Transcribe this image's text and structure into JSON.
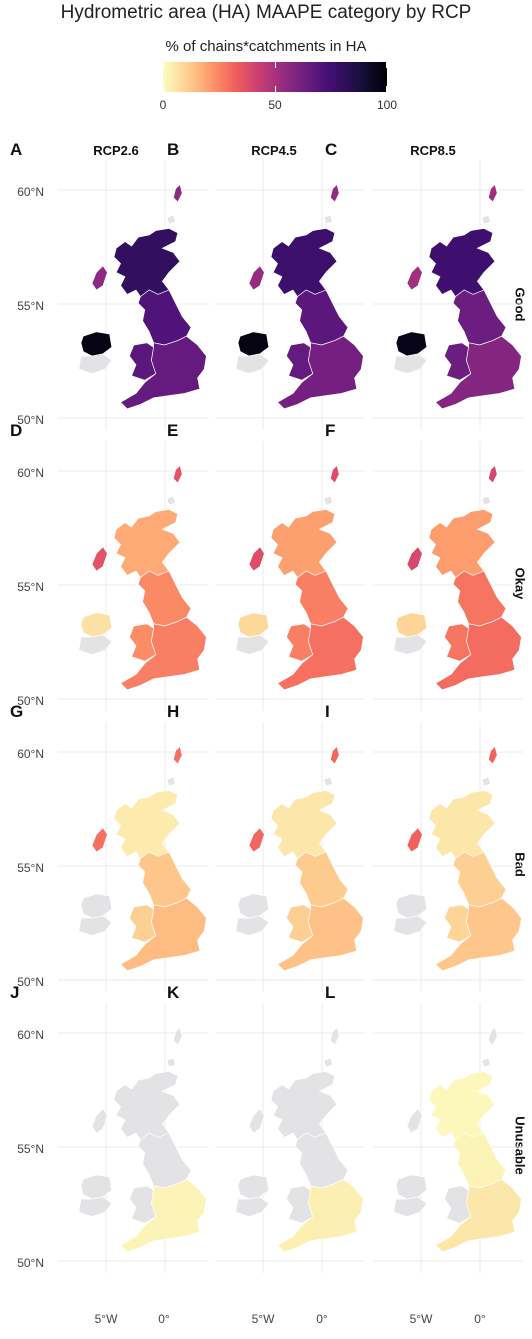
{
  "title": "Hydrometric area (HA) MAAPE category by RCP",
  "legend": {
    "title": "% of chains*catchments in HA",
    "ticks": [
      "0",
      "50",
      "100"
    ]
  },
  "columns": [
    "RCP2.6",
    "RCP4.5",
    "RCP8.5"
  ],
  "rows": [
    "Good",
    "Okay",
    "Bad",
    "Unusable"
  ],
  "panel_letters": [
    "A",
    "B",
    "C",
    "D",
    "E",
    "F",
    "G",
    "H",
    "I",
    "J",
    "K",
    "L"
  ],
  "lat_labels": [
    "60°N",
    "55°N",
    "50°N"
  ],
  "lon_labels": [
    "5°W",
    "0°"
  ],
  "colors": {
    "no_data": "#e3e3e6",
    "grid": "#ebebeb",
    "scale": [
      "#fcfdbf",
      "#feca8d",
      "#fd9668",
      "#f1605d",
      "#cd4071",
      "#9e2f7f",
      "#721f81",
      "#440f76",
      "#180f3d",
      "#000004"
    ]
  },
  "map_data": {
    "type": "choropleth",
    "color_scale": "magma (reversed)",
    "range": [
      0,
      100
    ],
    "panels": [
      {
        "row": "Good",
        "rcp": "RCP2.6",
        "scotland": 82,
        "ni": 97,
        "england_north": 75,
        "england_south": 70,
        "wales": 72,
        "islands": 60
      },
      {
        "row": "Good",
        "rcp": "RCP4.5",
        "scotland": 80,
        "ni": 97,
        "england_north": 72,
        "england_south": 66,
        "wales": 70,
        "islands": 58
      },
      {
        "row": "Good",
        "rcp": "RCP8.5",
        "scotland": 79,
        "ni": 96,
        "england_north": 68,
        "england_south": 62,
        "wales": 68,
        "islands": 55
      },
      {
        "row": "Okay",
        "rcp": "RCP2.6",
        "scotland": 18,
        "ni": 6,
        "england_north": 25,
        "england_south": 27,
        "wales": 24,
        "islands": 38
      },
      {
        "row": "Okay",
        "rcp": "RCP4.5",
        "scotland": 20,
        "ni": 8,
        "england_north": 27,
        "england_south": 30,
        "wales": 27,
        "islands": 40
      },
      {
        "row": "Okay",
        "rcp": "RCP8.5",
        "scotland": 21,
        "ni": 9,
        "england_north": 29,
        "england_south": 31,
        "wales": 29,
        "islands": 42
      },
      {
        "row": "Bad",
        "rcp": "RCP2.6",
        "scotland": 4,
        "ni": 0,
        "england_north": 12,
        "england_south": 14,
        "wales": 10,
        "islands": 30
      },
      {
        "row": "Bad",
        "rcp": "RCP4.5",
        "scotland": 5,
        "ni": 0,
        "england_north": 11,
        "england_south": 13,
        "wales": 10,
        "islands": 32
      },
      {
        "row": "Bad",
        "rcp": "RCP8.5",
        "scotland": 5,
        "ni": 0,
        "england_north": 10,
        "england_south": 12,
        "wales": 9,
        "islands": 33
      },
      {
        "row": "Unusable",
        "rcp": "RCP2.6",
        "scotland": 0,
        "ni": 0,
        "england_north": 0,
        "england_south": 2,
        "wales": 0,
        "islands": 0
      },
      {
        "row": "Unusable",
        "rcp": "RCP4.5",
        "scotland": 0,
        "ni": 0,
        "england_north": 0,
        "england_south": 3,
        "wales": 0,
        "islands": 0
      },
      {
        "row": "Unusable",
        "rcp": "RCP8.5",
        "scotland": 1,
        "ni": 0,
        "england_north": 2,
        "england_south": 5,
        "wales": 0,
        "islands": 0
      }
    ]
  }
}
